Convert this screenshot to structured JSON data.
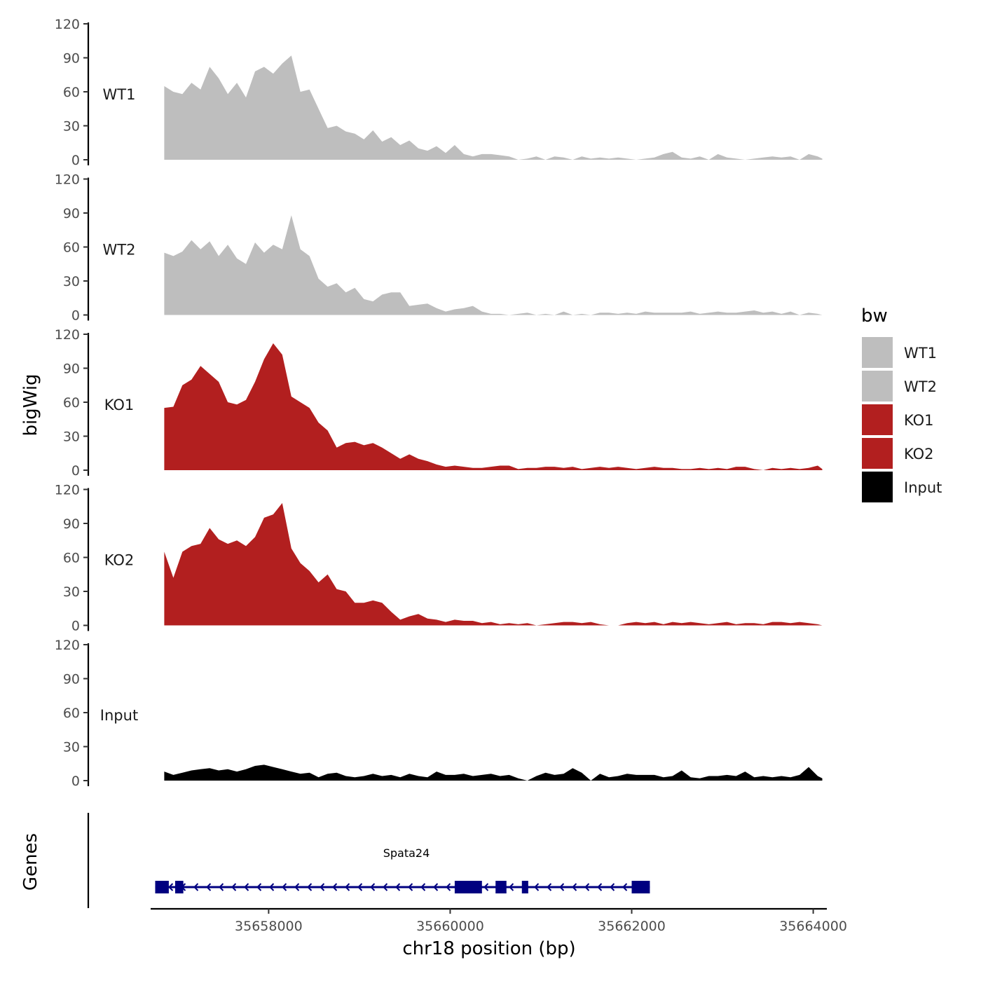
{
  "chart_data": {
    "type": "area",
    "xlabel": "chr18 position (bp)",
    "ylabel": "bigWig",
    "gene_panel_label": "Genes",
    "xlim": [
      35656700,
      35664150
    ],
    "ylim": [
      0,
      120
    ],
    "x_ticks": [
      35658000,
      35660000,
      35662000,
      35664000
    ],
    "x_tick_labels": [
      "35658000",
      "35660000",
      "35662000",
      "35664000"
    ],
    "y_ticks": [
      0,
      30,
      60,
      90,
      120
    ],
    "y_tick_labels": [
      "0",
      "30",
      "60",
      "90",
      "120"
    ],
    "x": [
      35656850,
      35656950,
      35657050,
      35657150,
      35657250,
      35657350,
      35657450,
      35657550,
      35657650,
      35657750,
      35657850,
      35657950,
      35658050,
      35658150,
      35658250,
      35658350,
      35658450,
      35658550,
      35658650,
      35658750,
      35658850,
      35658950,
      35659050,
      35659150,
      35659250,
      35659350,
      35659450,
      35659550,
      35659650,
      35659750,
      35659850,
      35659950,
      35660050,
      35660150,
      35660250,
      35660350,
      35660450,
      35660550,
      35660650,
      35660750,
      35660850,
      35660950,
      35661050,
      35661150,
      35661250,
      35661350,
      35661450,
      35661550,
      35661650,
      35661750,
      35661850,
      35661950,
      35662050,
      35662150,
      35662250,
      35662350,
      35662450,
      35662550,
      35662650,
      35662750,
      35662850,
      35662950,
      35663050,
      35663150,
      35663250,
      35663350,
      35663450,
      35663550,
      35663650,
      35663750,
      35663850,
      35663950,
      35664050,
      35664100
    ],
    "series": [
      {
        "name": "WT1",
        "label": "WT1",
        "color": "#bebebe",
        "values": [
          65,
          60,
          58,
          68,
          62,
          82,
          72,
          58,
          68,
          55,
          78,
          82,
          76,
          85,
          92,
          60,
          62,
          45,
          28,
          30,
          25,
          23,
          18,
          26,
          16,
          20,
          13,
          17,
          10,
          8,
          12,
          6,
          13,
          5,
          3,
          5,
          5,
          4,
          3,
          0,
          1,
          3,
          0,
          3,
          2,
          0,
          3,
          1,
          2,
          1,
          2,
          1,
          0,
          1,
          2,
          5,
          7,
          2,
          1,
          3,
          0,
          5,
          2,
          1,
          0,
          1,
          2,
          3,
          2,
          3,
          0,
          5,
          3,
          1
        ]
      },
      {
        "name": "WT2",
        "label": "WT2",
        "color": "#bebebe",
        "values": [
          55,
          52,
          56,
          66,
          58,
          65,
          52,
          62,
          50,
          45,
          64,
          55,
          62,
          58,
          88,
          58,
          52,
          32,
          25,
          28,
          20,
          24,
          14,
          12,
          18,
          20,
          20,
          8,
          9,
          10,
          6,
          3,
          5,
          6,
          8,
          3,
          1,
          1,
          0,
          1,
          2,
          0,
          1,
          0,
          3,
          0,
          1,
          0,
          2,
          2,
          1,
          2,
          1,
          3,
          2,
          2,
          2,
          2,
          3,
          1,
          2,
          3,
          2,
          2,
          3,
          4,
          2,
          3,
          1,
          3,
          0,
          2,
          1,
          0
        ]
      },
      {
        "name": "KO1",
        "label": "KO1",
        "color": "#b21f1f",
        "values": [
          55,
          56,
          75,
          80,
          92,
          85,
          78,
          60,
          58,
          62,
          78,
          98,
          112,
          102,
          65,
          60,
          55,
          42,
          35,
          20,
          24,
          25,
          22,
          24,
          20,
          15,
          10,
          14,
          10,
          8,
          5,
          3,
          4,
          3,
          2,
          2,
          3,
          4,
          4,
          1,
          2,
          2,
          3,
          3,
          2,
          3,
          1,
          2,
          3,
          2,
          3,
          2,
          1,
          2,
          3,
          2,
          2,
          1,
          1,
          2,
          1,
          2,
          1,
          3,
          3,
          1,
          0,
          2,
          1,
          2,
          1,
          2,
          4,
          1
        ]
      },
      {
        "name": "KO2",
        "label": "KO2",
        "color": "#b21f1f",
        "values": [
          65,
          42,
          65,
          70,
          72,
          86,
          76,
          72,
          75,
          70,
          78,
          95,
          98,
          108,
          68,
          55,
          48,
          38,
          45,
          32,
          30,
          20,
          20,
          22,
          20,
          12,
          5,
          8,
          10,
          6,
          5,
          3,
          5,
          4,
          4,
          2,
          3,
          1,
          2,
          1,
          2,
          0,
          1,
          2,
          3,
          3,
          2,
          3,
          1,
          0,
          0,
          2,
          3,
          2,
          3,
          1,
          3,
          2,
          3,
          2,
          1,
          2,
          3,
          1,
          2,
          2,
          1,
          3,
          3,
          2,
          3,
          2,
          1,
          0
        ]
      },
      {
        "name": "Input",
        "label": "Input",
        "color": "#000000",
        "values": [
          8,
          5,
          7,
          9,
          10,
          11,
          9,
          10,
          8,
          10,
          13,
          14,
          12,
          10,
          8,
          6,
          7,
          3,
          6,
          7,
          4,
          3,
          4,
          6,
          4,
          5,
          3,
          6,
          4,
          3,
          8,
          5,
          5,
          6,
          4,
          5,
          6,
          4,
          5,
          2,
          0,
          4,
          7,
          5,
          6,
          11,
          7,
          0,
          6,
          3,
          4,
          6,
          5,
          5,
          5,
          3,
          4,
          9,
          3,
          2,
          4,
          4,
          5,
          4,
          8,
          3,
          4,
          3,
          4,
          3,
          5,
          12,
          4,
          2
        ]
      }
    ],
    "legend": {
      "title": "bw",
      "position": "right",
      "entries": [
        "WT1",
        "WT2",
        "KO1",
        "KO2",
        "Input"
      ]
    },
    "gene": {
      "name": "Spata24",
      "label": "Spata24",
      "strand": "-",
      "start": 35656750,
      "end": 35662200,
      "color": "#000080",
      "exons": [
        [
          35656750,
          35656900
        ],
        [
          35656970,
          35657060
        ],
        [
          35660050,
          35660350
        ],
        [
          35660500,
          35660620
        ],
        [
          35660790,
          35660860
        ],
        [
          35662000,
          35662200
        ]
      ]
    }
  }
}
